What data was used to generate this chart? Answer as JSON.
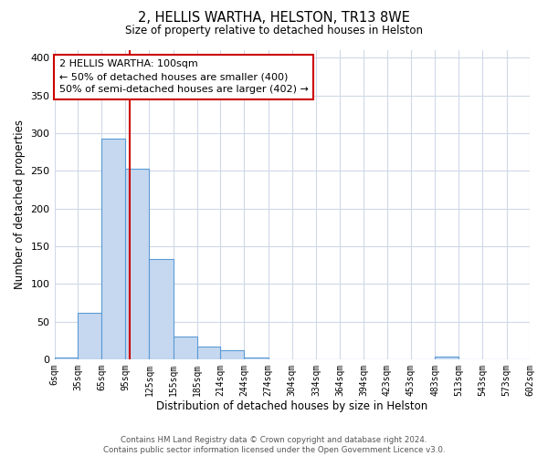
{
  "title": "2, HELLIS WARTHA, HELSTON, TR13 8WE",
  "subtitle": "Size of property relative to detached houses in Helston",
  "xlabel": "Distribution of detached houses by size in Helston",
  "ylabel": "Number of detached properties",
  "bin_edges": [
    6,
    35,
    65,
    95,
    125,
    155,
    185,
    214,
    244,
    274,
    304,
    334,
    364,
    394,
    423,
    453,
    483,
    513,
    543,
    573,
    602
  ],
  "bin_labels": [
    "6sqm",
    "35sqm",
    "65sqm",
    "95sqm",
    "125sqm",
    "155sqm",
    "185sqm",
    "214sqm",
    "244sqm",
    "274sqm",
    "304sqm",
    "334sqm",
    "364sqm",
    "394sqm",
    "423sqm",
    "453sqm",
    "483sqm",
    "513sqm",
    "543sqm",
    "573sqm",
    "602sqm"
  ],
  "bar_heights": [
    2,
    62,
    293,
    253,
    133,
    30,
    17,
    12,
    2,
    0,
    0,
    0,
    0,
    0,
    0,
    0,
    4,
    0,
    0,
    0
  ],
  "bar_color": "#c5d8f0",
  "bar_edge_color": "#5b9bd5",
  "bar_edge_width": 0.8,
  "ylim": [
    0,
    410
  ],
  "yticks": [
    0,
    50,
    100,
    150,
    200,
    250,
    300,
    350,
    400
  ],
  "red_line_x": 100,
  "annotation_title": "2 HELLIS WARTHA: 100sqm",
  "annotation_line1": "← 50% of detached houses are smaller (400)",
  "annotation_line2": "50% of semi-detached houses are larger (402) →",
  "annotation_color": "#cc0000",
  "footer_line1": "Contains HM Land Registry data © Crown copyright and database right 2024.",
  "footer_line2": "Contains public sector information licensed under the Open Government Licence v3.0.",
  "bg_color": "#ffffff",
  "grid_color": "#d0d8e8"
}
